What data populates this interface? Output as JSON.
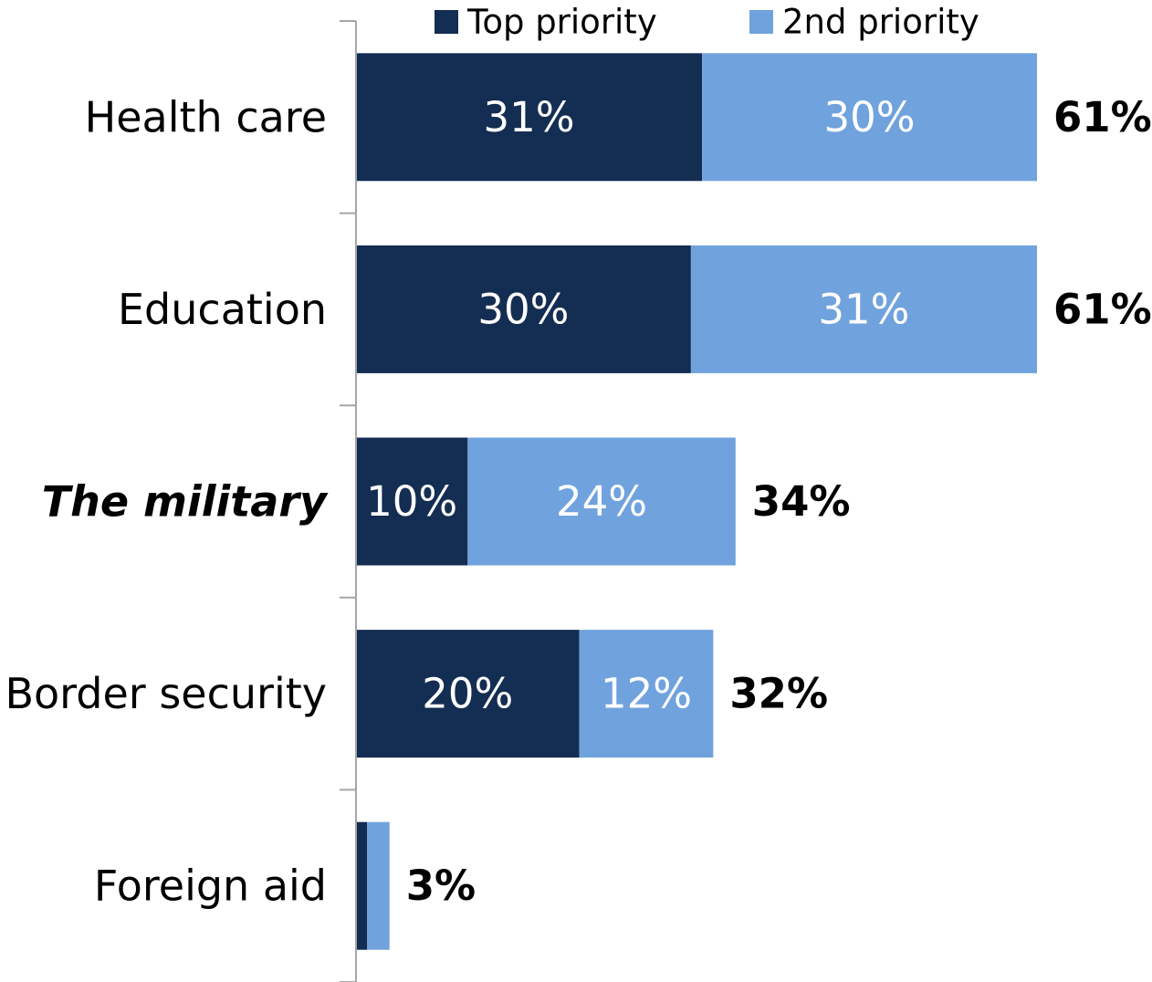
{
  "chart_data": {
    "type": "bar",
    "orientation": "horizontal",
    "stacked": true,
    "categories": [
      "Health care",
      "Education",
      "The military",
      "Border security",
      "Foreign aid"
    ],
    "emphasized_category": "The military",
    "series": [
      {
        "name": "Top priority",
        "values": [
          31,
          30,
          10,
          20,
          1
        ],
        "color": "#142d52",
        "labels": [
          "31%",
          "30%",
          "10%",
          "20%",
          ""
        ]
      },
      {
        "name": "2nd priority",
        "values": [
          30,
          31,
          24,
          12,
          2
        ],
        "color": "#70a2de",
        "labels": [
          "30%",
          "31%",
          "24%",
          "12%",
          ""
        ]
      }
    ],
    "totals": [
      "61%",
      "61%",
      "34%",
      "32%",
      "3%"
    ],
    "title": "",
    "xlabel": "",
    "ylabel": "",
    "xlim": [
      0,
      61
    ],
    "legend_position": "top",
    "grid": false,
    "axis_color": "#a6a6a6"
  }
}
